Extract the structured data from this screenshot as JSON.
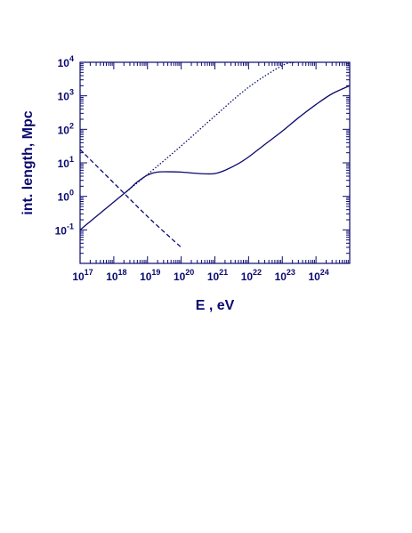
{
  "chart_data": {
    "type": "line",
    "xlabel": "E , eV",
    "ylabel": "int. length,  Mpc",
    "x_scale": "log",
    "y_scale": "log",
    "xlim": [
      1e+17,
      1e+25
    ],
    "ylim": [
      0.01,
      10000
    ],
    "x_ticks": [
      {
        "base": "10",
        "exp": "17",
        "value": 1e+17
      },
      {
        "base": "10",
        "exp": "18",
        "value": 1e+18
      },
      {
        "base": "10",
        "exp": "19",
        "value": 1e+19
      },
      {
        "base": "10",
        "exp": "20",
        "value": 1e+20
      },
      {
        "base": "10",
        "exp": "21",
        "value": 1e+21
      },
      {
        "base": "10",
        "exp": "22",
        "value": 1e+22
      },
      {
        "base": "10",
        "exp": "23",
        "value": 1e+23
      },
      {
        "base": "10",
        "exp": "24",
        "value": 1e+24
      }
    ],
    "y_ticks": [
      {
        "base": "10",
        "exp": "-1",
        "value": 0.1
      },
      {
        "base": "10",
        "exp": "0",
        "value": 1
      },
      {
        "base": "10",
        "exp": "1",
        "value": 10
      },
      {
        "base": "10",
        "exp": "2",
        "value": 100
      },
      {
        "base": "10",
        "exp": "3",
        "value": 1000
      },
      {
        "base": "10",
        "exp": "4",
        "value": 10000
      }
    ],
    "grid": false,
    "series": [
      {
        "style": "solid",
        "color": "#0a0a6e",
        "x": [
          1e+17,
          3e+17,
          1e+18,
          2e+18,
          3e+18,
          5e+18,
          1e+19,
          2e+19,
          5e+19,
          1e+20,
          2e+20,
          5e+20,
          1e+21,
          2e+21,
          5e+21,
          1e+22,
          3e+22,
          1e+23,
          3e+23,
          1e+24,
          3e+24,
          1e+25
        ],
        "y": [
          0.1,
          0.25,
          0.68,
          1.2,
          1.7,
          2.7,
          4.3,
          5.3,
          5.4,
          5.3,
          5.0,
          4.7,
          4.8,
          6.0,
          9.5,
          15,
          35,
          88,
          220,
          550,
          1150,
          2000
        ]
      },
      {
        "style": "dotted",
        "color": "#0a0a6e",
        "x": [
          2e+18,
          1e+19,
          1e+20,
          1e+21,
          1e+22,
          1e+23,
          2.5e+23
        ],
        "y": [
          1.2,
          4.5,
          32,
          250,
          1800,
          8000,
          10000
        ]
      },
      {
        "style": "dashed",
        "color": "#0a0a6e",
        "x": [
          1e+17,
          1e+18,
          1e+19,
          1e+20
        ],
        "y": [
          25,
          2.5,
          0.25,
          0.03
        ]
      }
    ]
  }
}
